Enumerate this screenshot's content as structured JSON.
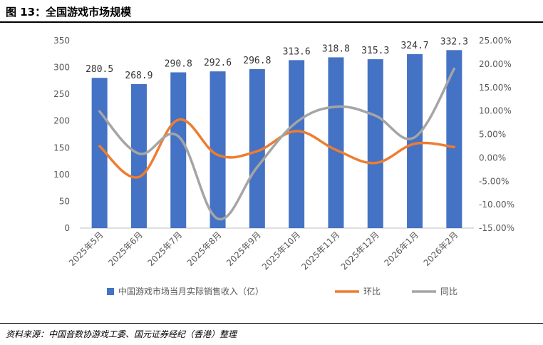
{
  "header": {
    "title": "图 13：全国游戏市场规模"
  },
  "footer": {
    "source": "资料来源：中国音数协游戏工委、国元证券经纪（香港）整理"
  },
  "chart_data": {
    "type": "bar",
    "categories": [
      "2025年5月",
      "2025年6月",
      "2025年7月",
      "2025年8月",
      "2025年9月",
      "2025年10月",
      "2025年11月",
      "2025年12月",
      "2026年1月",
      "2026年2月"
    ],
    "series": [
      {
        "name": "中国游戏市场当月实际销售收入（亿）",
        "type": "bar",
        "axis": "left",
        "values": [
          280.5,
          268.9,
          290.8,
          292.6,
          296.8,
          313.6,
          318.8,
          315.3,
          324.7,
          332.3
        ],
        "labels": [
          "280.5",
          "268.9",
          "290.8",
          "292.6",
          "296.8",
          "313.6",
          "318.8",
          "315.3",
          "324.7",
          "332.3"
        ],
        "color": "#4472C4"
      },
      {
        "name": "环比",
        "type": "line",
        "axis": "right",
        "values": [
          2.5,
          -4.1,
          8.1,
          0.6,
          1.4,
          5.7,
          1.7,
          -1.1,
          3.0,
          2.3
        ],
        "color": "#ED7D31"
      },
      {
        "name": "同比",
        "type": "line",
        "axis": "right",
        "values": [
          9.9,
          0.9,
          4.6,
          -13.0,
          -2.0,
          7.6,
          10.9,
          9.0,
          4.4,
          19.0
        ],
        "color": "#A5A5A5"
      }
    ],
    "yleft": {
      "min": 0,
      "max": 350,
      "step": 50,
      "ticks": [
        "0",
        "50",
        "100",
        "150",
        "200",
        "250",
        "300",
        "350"
      ]
    },
    "yright": {
      "min": -15,
      "max": 25,
      "step": 5,
      "ticks": [
        "-15.00%",
        "-10.00%",
        "-5.00%",
        "0.00%",
        "5.00%",
        "10.00%",
        "15.00%",
        "20.00%",
        "25.00%"
      ]
    },
    "legend_position": "bottom",
    "grid": false
  }
}
